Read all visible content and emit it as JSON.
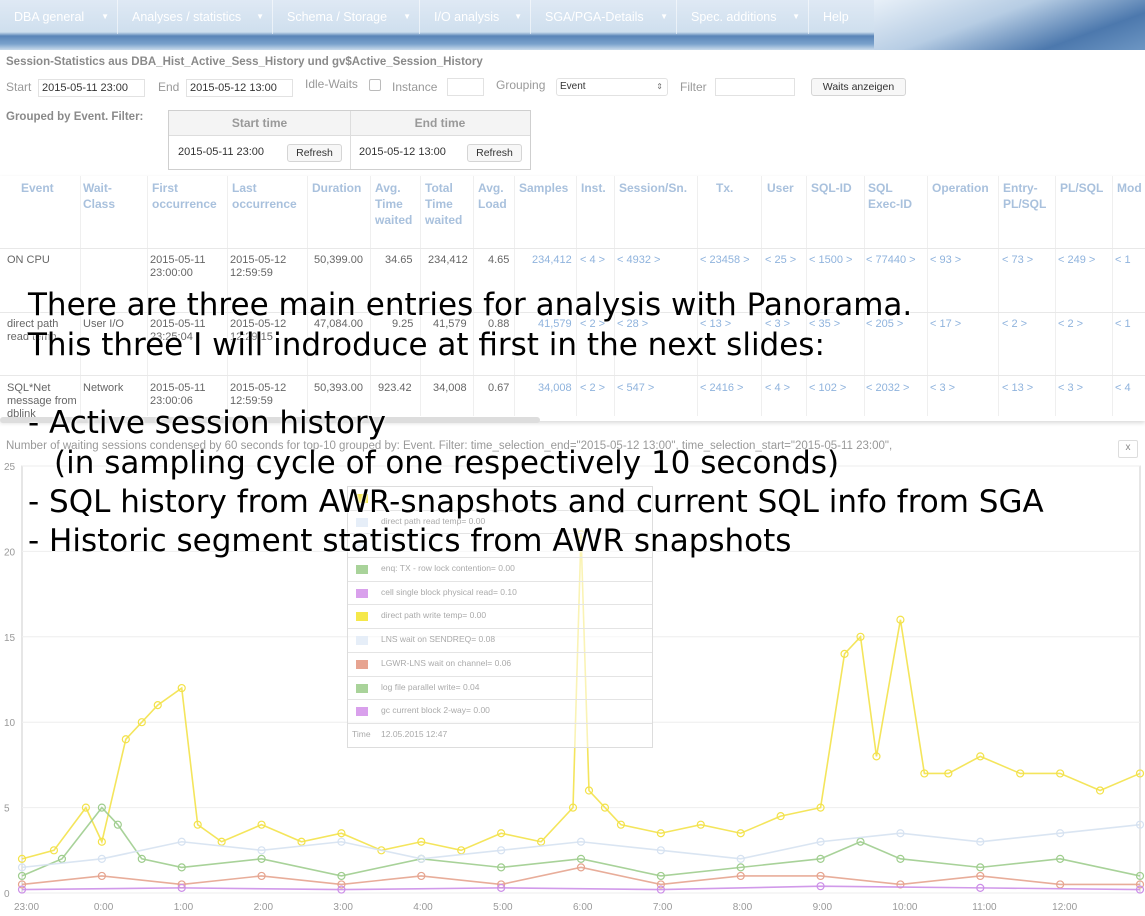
{
  "menu": {
    "items": [
      {
        "label": "DBA general",
        "chevron": true
      },
      {
        "label": "Analyses / statistics",
        "chevron": true
      },
      {
        "label": "Schema / Storage",
        "chevron": true
      },
      {
        "label": "I/O analysis",
        "chevron": true
      },
      {
        "label": "SGA/PGA-Details",
        "chevron": true
      },
      {
        "label": "Spec. additions",
        "chevron": true
      },
      {
        "label": "Help",
        "chevron": false
      }
    ]
  },
  "form": {
    "title": "Session-Statistics aus DBA_Hist_Active_Sess_History und gv$Active_Session_History",
    "start_label": "Start",
    "start_value": "2015-05-11 23:00",
    "end_label": "End",
    "end_value": "2015-05-12 13:00",
    "idle_waits_label": "Idle-Waits",
    "instance_label": "Instance",
    "instance_value": "",
    "grouping_label": "Grouping",
    "grouping_value": "Event",
    "filter_label": "Filter",
    "filter_value": "",
    "submit_label": "Waits anzeigen"
  },
  "grouped": {
    "label": "Grouped by Event. Filter:",
    "start_header": "Start time",
    "end_header": "End time",
    "start_value": "2015-05-11 23:00",
    "end_value": "2015-05-12 13:00",
    "refresh_label": "Refresh"
  },
  "table": {
    "headers": [
      "Event",
      "Wait-Class",
      "First occurrence",
      "Last occurrence",
      "Duration",
      "Avg. Time waited",
      "Total Time waited",
      "Avg. Load",
      "Samples",
      "Inst.",
      "Session/Sn.",
      "Tx.",
      "User",
      "SQL-ID",
      "SQL Exec-ID",
      "Operation",
      "Entry-PL/SQL",
      "PL/SQL",
      "Mod"
    ],
    "rows": [
      {
        "event": "ON CPU",
        "wait_class": "",
        "first": "2015-05-11 23:00:00",
        "last": "2015-05-12 12:59:59",
        "duration": "50,399.00",
        "avg_time": "34.65",
        "total_time": "234,412",
        "avg_load": "4.65",
        "samples": "234,412",
        "inst": "< 4 >",
        "session": "< 4932 >",
        "tx": "< 23458 >",
        "user": "< 25 >",
        "sql_id": "< 1500 >",
        "sql_exec": "< 77440 >",
        "operation": "< 93 >",
        "entry_plsql": "< 73 >",
        "plsql": "< 249 >",
        "mod": "< 1"
      },
      {
        "event": "direct path read temp",
        "wait_class": "User I/O",
        "first": "2015-05-11 23:25:04",
        "last": "2015-05-12 12:29:15",
        "duration": "47,084.00",
        "avg_time": "9.25",
        "total_time": "41,579",
        "avg_load": "0.88",
        "samples": "41,579",
        "inst": "< 2 >",
        "session": "< 28 >",
        "tx": "< 13 >",
        "user": "< 3 >",
        "sql_id": "< 35 >",
        "sql_exec": "< 205 >",
        "operation": "< 17 >",
        "entry_plsql": "< 2 >",
        "plsql": "< 2 >",
        "mod": "< 1"
      },
      {
        "event": "SQL*Net message from dblink",
        "wait_class": "Network",
        "first": "2015-05-11 23:00:06",
        "last": "2015-05-12 12:59:59",
        "duration": "50,393.00",
        "avg_time": "923.42",
        "total_time": "34,008",
        "avg_load": "0.67",
        "samples": "34,008",
        "inst": "< 2 >",
        "session": "< 547 >",
        "tx": "< 2416 >",
        "user": "< 4 >",
        "sql_id": "< 102 >",
        "sql_exec": "< 2032 >",
        "operation": "< 3 >",
        "entry_plsql": "< 13 >",
        "plsql": "< 3 >",
        "mod": "< 4"
      }
    ]
  },
  "chart_caption": "Number of waiting sessions condensed by 60 seconds for top-10 grouped by: Event. Filter: time_selection_end=\"2015-05-12 13:00\", time_selection_start=\"2015-05-11 23:00\",",
  "chart_close": "x",
  "legend": {
    "entries": [
      {
        "text": "",
        "color": "#f5e84a"
      },
      {
        "text": "direct path read temp= 0.00",
        "color": "#e6eef8"
      },
      {
        "text": "",
        "color": "#e6eef8"
      },
      {
        "text": "enq: TX - row lock contention= 0.00",
        "color": "#a9d39a"
      },
      {
        "text": "cell single block physical read= 0.10",
        "color": "#d9a0ec"
      },
      {
        "text": "direct path write temp= 0.00",
        "color": "#f5e84a"
      },
      {
        "text": "LNS wait on SENDREQ= 0.08",
        "color": "#e6eef8"
      },
      {
        "text": "LGWR-LNS wait on channel= 0.06",
        "color": "#e7a491"
      },
      {
        "text": "log file parallel write= 0.04",
        "color": "#a9d39a"
      },
      {
        "text": "gc current block 2-way= 0.00",
        "color": "#d9a0ec"
      }
    ],
    "time_label": "Time",
    "time_value": "12.05.2015 12:47"
  },
  "chart_data": {
    "type": "line",
    "title": "",
    "xlabel": "",
    "ylabel": "",
    "y_ticks": [
      "0",
      "5",
      "10",
      "15",
      "20",
      "25"
    ],
    "ylim": [
      0,
      25
    ],
    "x_ticks": [
      "23:00",
      "0:00",
      "1:00",
      "2:00",
      "3:00",
      "4:00",
      "5:00",
      "6:00",
      "7:00",
      "8:00",
      "9:00",
      "10:00",
      "11:00",
      "12:00"
    ],
    "xlim_hours": [
      0,
      14
    ],
    "series": [
      {
        "name": "",
        "color": "#f3e24a",
        "x": [
          0,
          0.4,
          0.8,
          1.0,
          1.3,
          1.5,
          1.7,
          2.0,
          2.2,
          2.5,
          3.0,
          3.5,
          4.0,
          4.5,
          5.0,
          5.5,
          6.0,
          6.5,
          6.9,
          7.0,
          7.1,
          7.3,
          7.5,
          8.0,
          8.5,
          9.0,
          9.5,
          10.0,
          10.3,
          10.5,
          10.7,
          11.0,
          11.3,
          11.6,
          12.0,
          12.5,
          13.0,
          13.5,
          14.0
        ],
        "y": [
          2,
          2.5,
          5,
          3,
          9,
          10,
          11,
          12,
          4,
          3,
          4,
          3,
          3.5,
          2.5,
          3,
          2.5,
          3.5,
          3,
          5,
          21,
          6,
          5,
          4,
          3.5,
          4,
          3.5,
          4.5,
          5,
          14,
          15,
          8,
          16,
          7,
          7,
          8,
          7,
          7,
          6,
          7
        ]
      },
      {
        "name": "",
        "color": "#9fcd8e",
        "x": [
          0,
          0.5,
          1.0,
          1.2,
          1.5,
          2.0,
          3.0,
          4.0,
          5.0,
          6.0,
          7.0,
          8.0,
          9.0,
          10.0,
          10.5,
          11.0,
          12.0,
          13.0,
          14.0
        ],
        "y": [
          1,
          2,
          5,
          4,
          2,
          1.5,
          2,
          1,
          2,
          1.5,
          2,
          1,
          1.5,
          2,
          3,
          2,
          1.5,
          2,
          1
        ]
      },
      {
        "name": "",
        "color": "#e6a48f",
        "x": [
          0,
          1,
          2,
          3,
          4,
          5,
          6,
          7,
          8,
          9,
          10,
          11,
          12,
          13,
          14
        ],
        "y": [
          0.5,
          1,
          0.5,
          1,
          0.5,
          1,
          0.5,
          1.5,
          0.5,
          1,
          1,
          0.5,
          1,
          0.5,
          0.5
        ]
      },
      {
        "name": "",
        "color": "#d6e2f1",
        "x": [
          0,
          1,
          2,
          3,
          4,
          5,
          6,
          7,
          8,
          9,
          10,
          11,
          12,
          13,
          14
        ],
        "y": [
          1.5,
          2,
          3,
          2.5,
          3,
          2,
          2.5,
          3,
          2.5,
          2,
          3,
          3.5,
          3,
          3.5,
          4
        ]
      },
      {
        "name": "",
        "color": "#cc8fe8",
        "x": [
          0,
          2,
          4,
          6,
          8,
          10,
          12,
          14
        ],
        "y": [
          0.2,
          0.3,
          0.2,
          0.3,
          0.2,
          0.4,
          0.3,
          0.2
        ]
      }
    ]
  },
  "overlay": {
    "intro_line1": "There are three main entries for analysis with Panorama.",
    "intro_line2": "This three I will indroduce at first in the next slides:",
    "item1": "- Active session history",
    "item1_sub": "(in sampling cycle of one respectively 10 seconds)",
    "item2": "- SQL history from AWR-snapshots and current SQL info from SGA",
    "item3": "- Historic segment statistics from AWR snapshots"
  }
}
